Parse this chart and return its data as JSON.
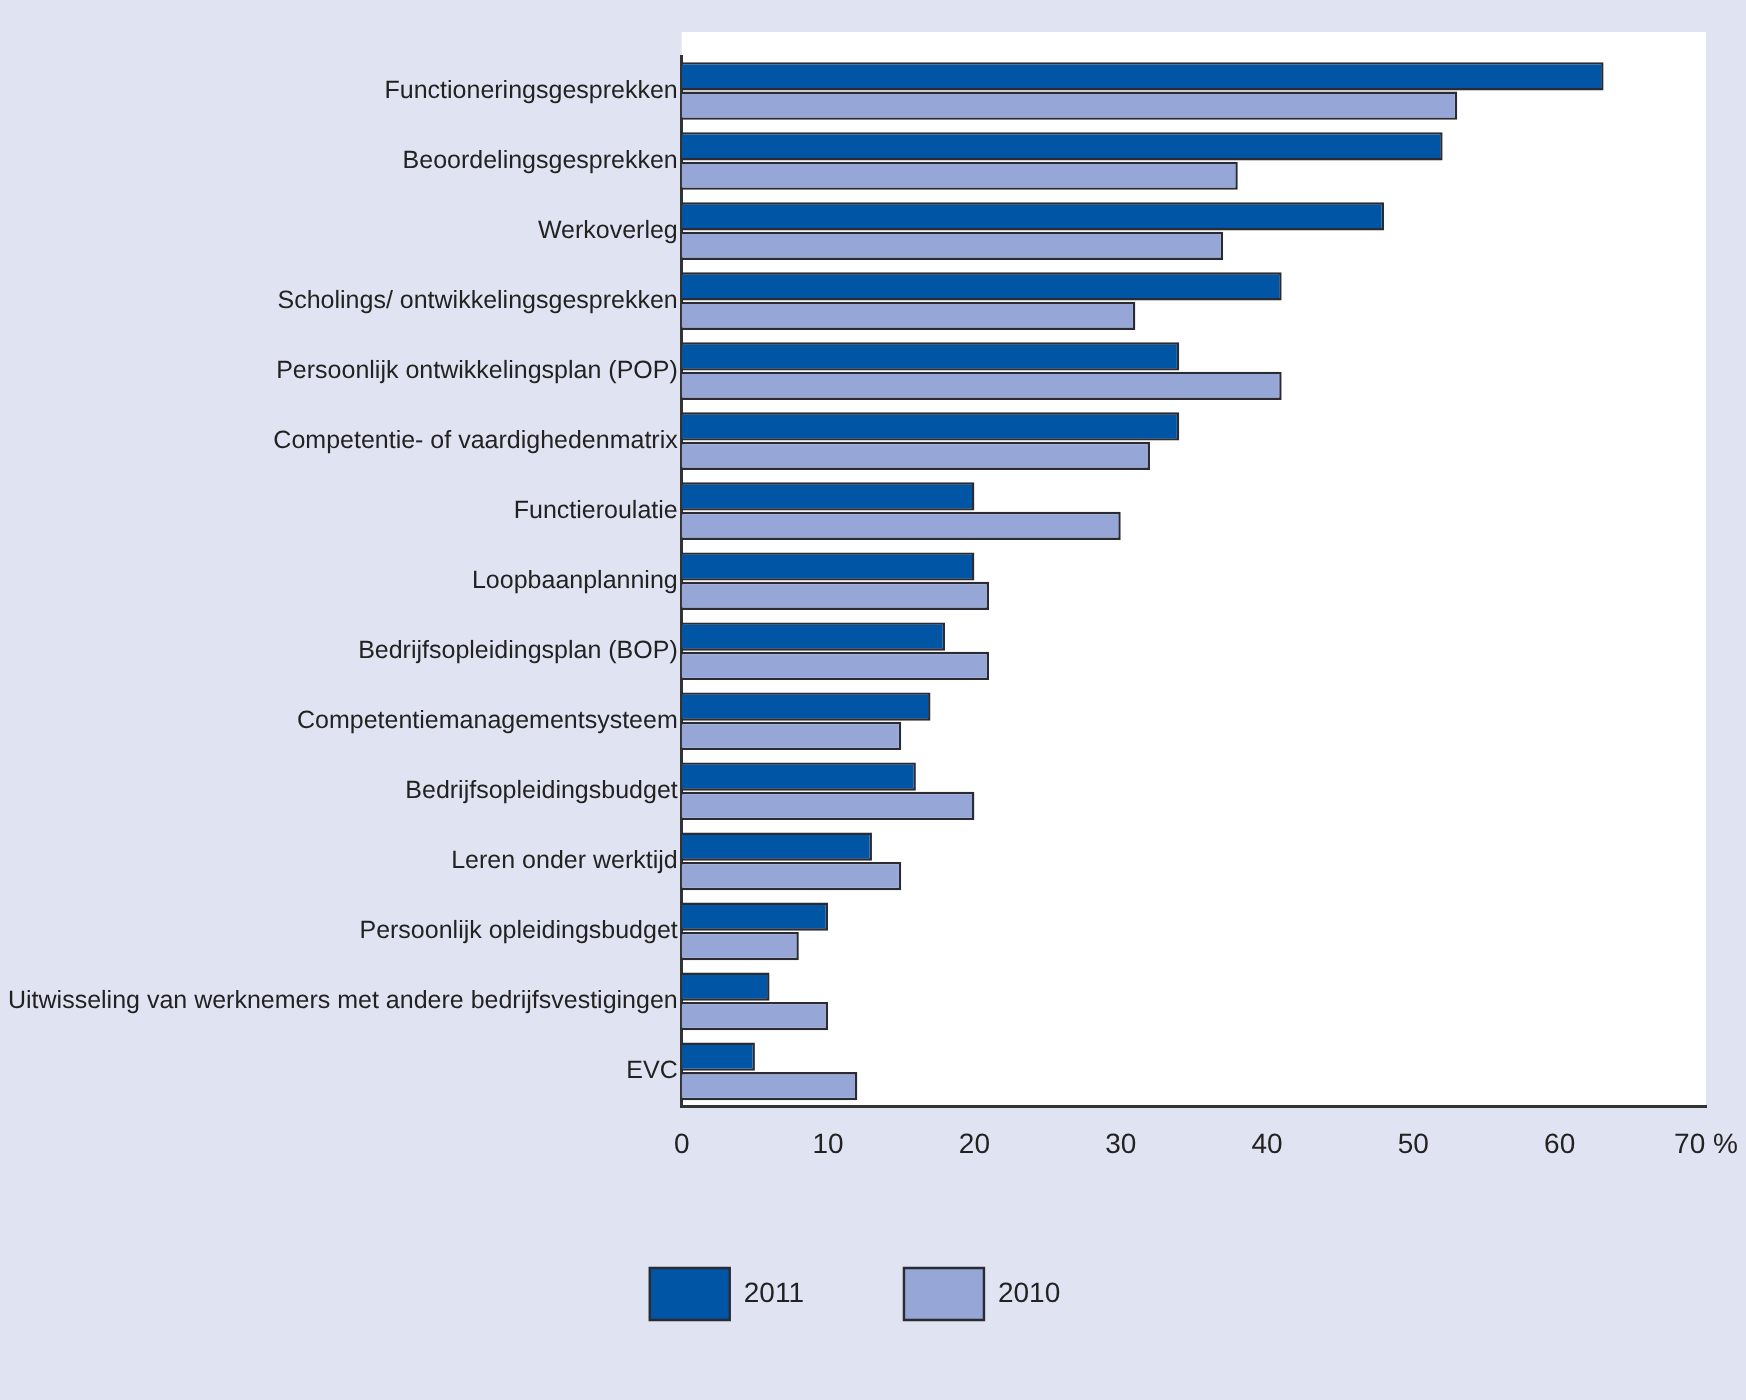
{
  "chart_data": {
    "type": "bar",
    "orientation": "horizontal",
    "categories": [
      "Functioneringsgesprekken",
      "Beoordelingsgesprekken",
      "Werkoverleg",
      "Scholings/ ontwikkelingsgesprekken",
      "Persoonlijk ontwikkelingsplan (POP)",
      "Competentie- of vaardighedenmatrix",
      "Functieroulatie",
      "Loopbaanplanning",
      "Bedrijfsopleidingsplan (BOP)",
      "Competentiemanagementsysteem",
      "Bedrijfsopleidingsbudget",
      "Leren onder werktijd",
      "Persoonlijk opleidingsbudget",
      "Uitwisseling van werknemers met andere bedrijfsvestigingen",
      "EVC"
    ],
    "series": [
      {
        "name": "2011",
        "color": "#0055a5",
        "values": [
          63,
          52,
          48,
          41,
          34,
          34,
          20,
          20,
          18,
          17,
          16,
          13,
          10,
          6,
          5
        ]
      },
      {
        "name": "2010",
        "color": "#96a6d6",
        "values": [
          53,
          38,
          37,
          31,
          41,
          32,
          30,
          21,
          21,
          15,
          20,
          15,
          8,
          10,
          12
        ]
      }
    ],
    "xlim": [
      0,
      70
    ],
    "xticks": [
      0,
      10,
      20,
      30,
      40,
      50,
      60,
      {
        "value": 70,
        "label": "70 %"
      }
    ],
    "legend": "bottom"
  }
}
